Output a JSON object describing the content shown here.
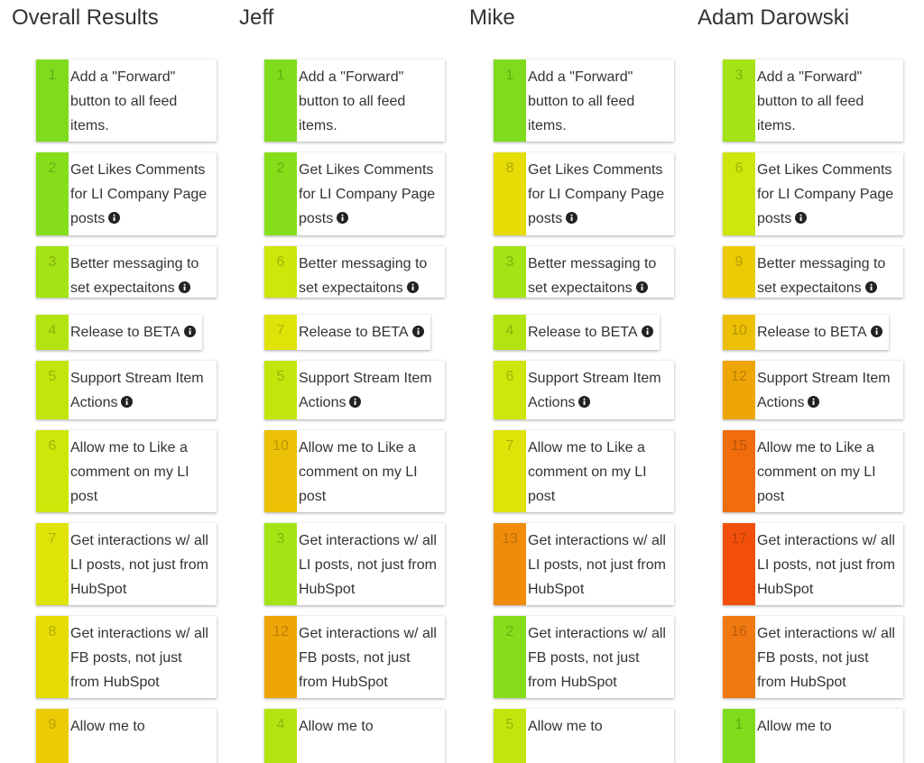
{
  "columns": [
    {
      "title": "Overall Results",
      "items": [
        {
          "rank": 1,
          "color": "#7edc1c",
          "text": "Add a \"Forward\" button to all feed items.",
          "info": false
        },
        {
          "rank": 2,
          "color": "#86de1a",
          "text": "Get Likes Comments for LI Company Page posts",
          "info": true
        },
        {
          "rank": 3,
          "color": "#a4e314",
          "text": "Better messaging to set expectaitons",
          "info": true
        },
        {
          "rank": 4,
          "color": "#b2e410",
          "text": "Release to BETA",
          "info": true
        },
        {
          "rank": 5,
          "color": "#c2e60c",
          "text": "Support Stream Item Actions",
          "info": true
        },
        {
          "rank": 6,
          "color": "#cfe60a",
          "text": "Allow me to Like a comment on my LI post",
          "info": false
        },
        {
          "rank": 7,
          "color": "#e0e308",
          "text": "Get interactions w/ all LI posts, not just from HubSpot",
          "info": false
        },
        {
          "rank": 8,
          "color": "#e6dc06",
          "text": "Get interactions w/ all FB posts, not just from HubSpot",
          "info": false
        },
        {
          "rank": 9,
          "color": "#eccb05",
          "text": "Allow me to",
          "info": false
        }
      ]
    },
    {
      "title": "Jeff",
      "items": [
        {
          "rank": 1,
          "color": "#7edc1c",
          "text": "Add a \"Forward\" button to all feed items.",
          "info": false
        },
        {
          "rank": 2,
          "color": "#86de1a",
          "text": "Get Likes Comments for LI Company Page posts",
          "info": true
        },
        {
          "rank": 6,
          "color": "#cfe60a",
          "text": "Better messaging to set expectaitons",
          "info": true
        },
        {
          "rank": 7,
          "color": "#e0e308",
          "text": "Release to BETA",
          "info": true
        },
        {
          "rank": 5,
          "color": "#c2e60c",
          "text": "Support Stream Item Actions",
          "info": true
        },
        {
          "rank": 10,
          "color": "#ecc005",
          "text": "Allow me to Like a comment on my LI post",
          "info": false
        },
        {
          "rank": 3,
          "color": "#a4e314",
          "text": "Get interactions w/ all LI posts, not just from HubSpot",
          "info": false
        },
        {
          "rank": 12,
          "color": "#eea506",
          "text": "Get interactions w/ all FB posts, not just from HubSpot",
          "info": false
        },
        {
          "rank": 4,
          "color": "#b2e410",
          "text": "Allow me to",
          "info": false
        }
      ]
    },
    {
      "title": "Mike",
      "items": [
        {
          "rank": 1,
          "color": "#7edc1c",
          "text": "Add a \"Forward\" button to all feed items.",
          "info": false
        },
        {
          "rank": 8,
          "color": "#e6dc06",
          "text": "Get Likes Comments for LI Company Page posts",
          "info": true
        },
        {
          "rank": 3,
          "color": "#a4e314",
          "text": "Better messaging to set expectaitons",
          "info": true
        },
        {
          "rank": 4,
          "color": "#b2e410",
          "text": "Release to BETA",
          "info": true
        },
        {
          "rank": 6,
          "color": "#cfe60a",
          "text": "Support Stream Item Actions",
          "info": true
        },
        {
          "rank": 7,
          "color": "#e0e308",
          "text": "Allow me to Like a comment on my LI post",
          "info": false
        },
        {
          "rank": 13,
          "color": "#f08c0a",
          "text": "Get interactions w/ all LI posts, not just from HubSpot",
          "info": false
        },
        {
          "rank": 2,
          "color": "#86de1a",
          "text": "Get interactions w/ all FB posts, not just from HubSpot",
          "info": false
        },
        {
          "rank": 5,
          "color": "#c2e60c",
          "text": "Allow me to",
          "info": false
        }
      ]
    },
    {
      "title": "Adam Darowski",
      "items": [
        {
          "rank": 3,
          "color": "#a4e314",
          "text": "Add a \"Forward\" button to all feed items.",
          "info": false
        },
        {
          "rank": 6,
          "color": "#cfe60a",
          "text": "Get Likes Comments for LI Company Page posts",
          "info": true
        },
        {
          "rank": 9,
          "color": "#eccb05",
          "text": "Better messaging to set expectaitons",
          "info": true
        },
        {
          "rank": 10,
          "color": "#ecc005",
          "text": "Release to BETA",
          "info": true
        },
        {
          "rank": 12,
          "color": "#eea506",
          "text": "Support Stream Item Actions",
          "info": true
        },
        {
          "rank": 15,
          "color": "#f06c0c",
          "text": "Allow me to Like a comment on my LI post",
          "info": false
        },
        {
          "rank": 17,
          "color": "#f2500a",
          "text": "Get interactions w/ all LI posts, not just from HubSpot",
          "info": false
        },
        {
          "rank": 16,
          "color": "#f07810",
          "text": "Get interactions w/ all FB posts, not just from HubSpot",
          "info": false
        },
        {
          "rank": 1,
          "color": "#7edc1c",
          "text": "Allow me to",
          "info": false
        }
      ]
    }
  ]
}
